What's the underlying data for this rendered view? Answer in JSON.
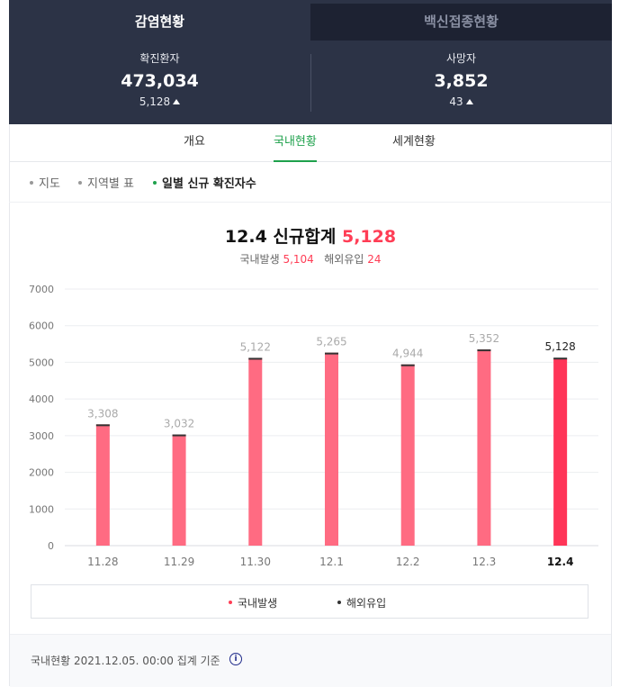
{
  "top_tabs": [
    {
      "label": "감염현황",
      "active": true
    },
    {
      "label": "백신접종현황",
      "active": false
    }
  ],
  "stats": {
    "confirmed": {
      "label": "확진환자",
      "value": "473,034",
      "change": "5,128"
    },
    "deaths": {
      "label": "사망자",
      "value": "3,852",
      "change": "43"
    }
  },
  "sub_tabs": [
    {
      "label": "개요",
      "active": false
    },
    {
      "label": "국내현황",
      "active": true
    },
    {
      "label": "세계현황",
      "active": false
    }
  ],
  "filters": [
    {
      "label": "지도",
      "active": false
    },
    {
      "label": "지역별 표",
      "active": false
    },
    {
      "label": "일별 신규 확진자수",
      "active": true
    }
  ],
  "headline": {
    "date": "12.4",
    "text": "신규합계",
    "total": "5,128",
    "domestic_label": "국내발생",
    "domestic_value": "5,104",
    "overseas_label": "해외유입",
    "overseas_value": "24"
  },
  "colors": {
    "bar": "#ff6b82",
    "bar_highlight": "#ff3558",
    "overseas": "#333333",
    "accent_green": "#1fa14c"
  },
  "chart_data": {
    "type": "bar",
    "stacked": true,
    "categories": [
      "11.28",
      "11.29",
      "11.30",
      "12.1",
      "12.2",
      "12.3",
      "12.4"
    ],
    "series": [
      {
        "name": "국내발생",
        "values": [
          3308,
          3032,
          5122,
          5265,
          4944,
          5352,
          5104
        ]
      },
      {
        "name": "해외유입",
        "values": [
          0,
          0,
          0,
          0,
          0,
          0,
          24
        ]
      }
    ],
    "totals": [
      3308,
      3032,
      5122,
      5265,
      4944,
      5352,
      5128
    ],
    "data_labels": [
      "3,308",
      "3,032",
      "5,122",
      "5,265",
      "4,944",
      "5,352",
      "5,128"
    ],
    "highlight_index": 6,
    "yticks": [
      0,
      1000,
      2000,
      3000,
      4000,
      5000,
      6000,
      7000
    ],
    "ylim": [
      0,
      7000
    ],
    "grid": true,
    "legend_position": "bottom"
  },
  "footer": {
    "note": "국내현황 2021.12.05. 00:00 집계 기준",
    "info_icon": "info-icon"
  }
}
